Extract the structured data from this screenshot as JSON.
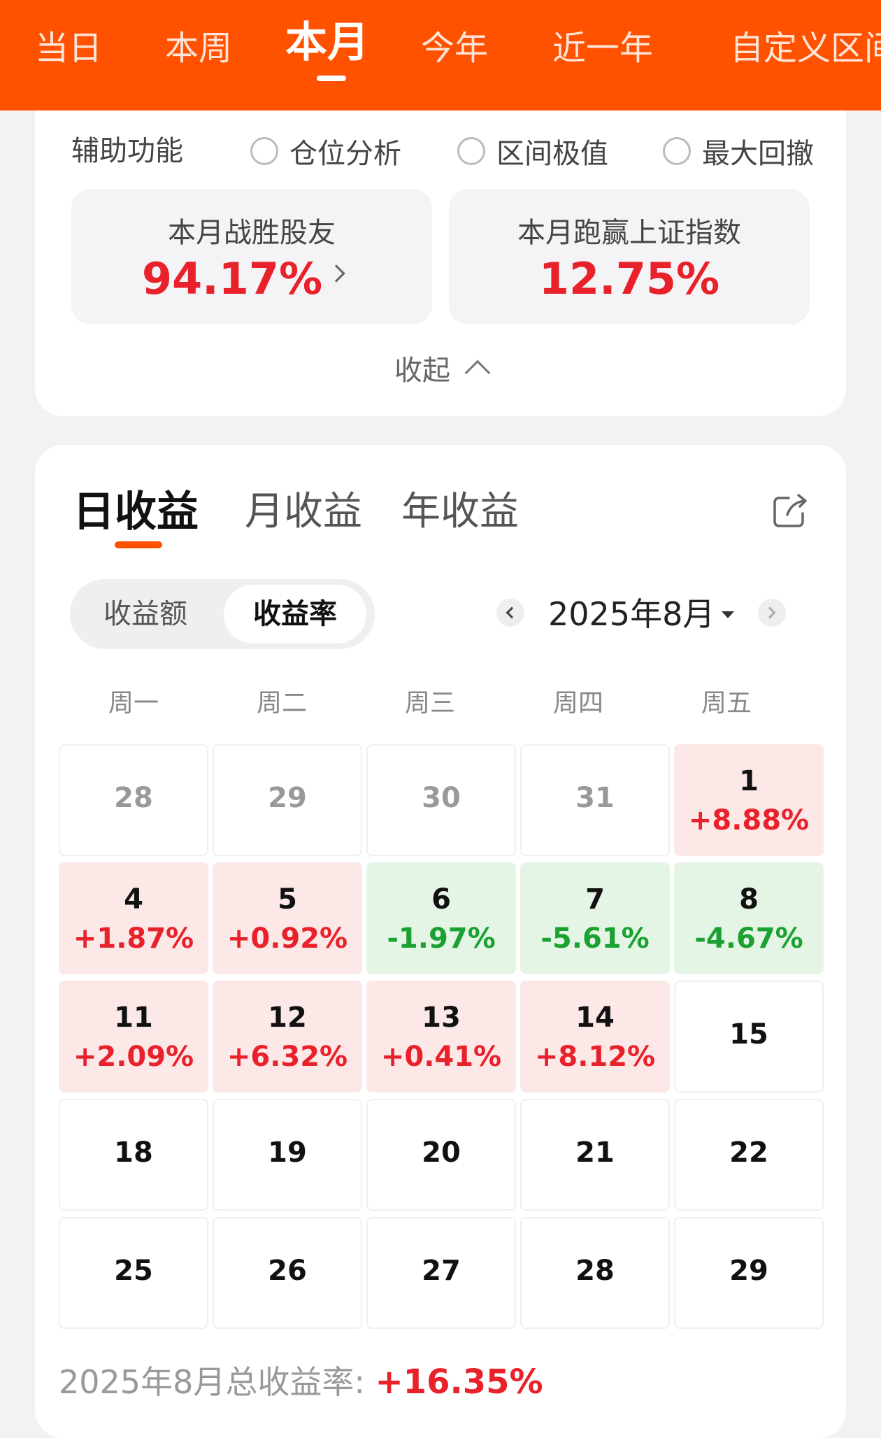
{
  "period_tabs": [
    "当日",
    "本周",
    "本月",
    "今年",
    "近一年",
    "自定义区间"
  ],
  "active_period": "本月",
  "aux": {
    "label": "辅助功能",
    "options": [
      "仓位分析",
      "区间极值",
      "最大回撤"
    ]
  },
  "stats": [
    {
      "label": "本月战胜股友",
      "value": "94.17%"
    },
    {
      "label": "本月跑赢上证指数",
      "value": "12.75%"
    }
  ],
  "collapse_label": "收起",
  "return_tabs": [
    "日收益",
    "月收益",
    "年收益"
  ],
  "segment": [
    "收益额",
    "收益率"
  ],
  "month_label": "2025年8月",
  "weekdays": [
    "周一",
    "周二",
    "周三",
    "周四",
    "周五"
  ],
  "calendar": [
    [
      {
        "day": "28",
        "state": "other"
      },
      {
        "day": "29",
        "state": "other"
      },
      {
        "day": "30",
        "state": "other"
      },
      {
        "day": "31",
        "state": "other"
      },
      {
        "day": "1",
        "pct": "+8.88%",
        "state": "up"
      }
    ],
    [
      {
        "day": "4",
        "pct": "+1.87%",
        "state": "up"
      },
      {
        "day": "5",
        "pct": "+0.92%",
        "state": "up"
      },
      {
        "day": "6",
        "pct": "-1.97%",
        "state": "down"
      },
      {
        "day": "7",
        "pct": "-5.61%",
        "state": "down"
      },
      {
        "day": "8",
        "pct": "-4.67%",
        "state": "down"
      }
    ],
    [
      {
        "day": "11",
        "pct": "+2.09%",
        "state": "up"
      },
      {
        "day": "12",
        "pct": "+6.32%",
        "state": "up"
      },
      {
        "day": "13",
        "pct": "+0.41%",
        "state": "up"
      },
      {
        "day": "14",
        "pct": "+8.12%",
        "state": "up"
      },
      {
        "day": "15",
        "state": "none"
      }
    ],
    [
      {
        "day": "18",
        "state": "none"
      },
      {
        "day": "19",
        "state": "none"
      },
      {
        "day": "20",
        "state": "none"
      },
      {
        "day": "21",
        "state": "none"
      },
      {
        "day": "22",
        "state": "none"
      }
    ],
    [
      {
        "day": "25",
        "state": "none"
      },
      {
        "day": "26",
        "state": "none"
      },
      {
        "day": "27",
        "state": "none"
      },
      {
        "day": "28",
        "state": "none"
      },
      {
        "day": "29",
        "state": "none"
      }
    ]
  ],
  "total": {
    "label": "2025年8月总收益率: ",
    "value": "+16.35%"
  },
  "colors": {
    "brand": "#ff5200",
    "up": "#e8212b",
    "down": "#1aa131"
  }
}
